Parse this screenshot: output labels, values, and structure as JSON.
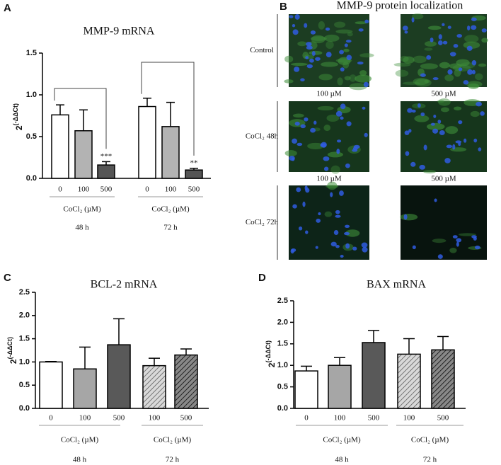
{
  "chart_data": [
    {
      "type": "bar",
      "panel_label": "A",
      "title": "MMP-9 mRNA",
      "ylabel": "2",
      "ylabel_exponent": "(-ΔΔCt)",
      "categories": [
        "0",
        "100",
        "500",
        "0",
        "100",
        "500"
      ],
      "values": [
        0.76,
        0.57,
        0.16,
        0.86,
        0.62,
        0.1
      ],
      "errors": [
        0.12,
        0.25,
        0.04,
        0.1,
        0.29,
        0.02
      ],
      "annotations": [
        null,
        null,
        "***",
        null,
        null,
        "**"
      ],
      "colors": [
        "#ffffff",
        "#b3b3b3",
        "#555555",
        "#ffffff",
        "#b3b3b3",
        "#555555"
      ],
      "hatched": [
        false,
        false,
        false,
        false,
        false,
        false
      ],
      "group_labels": [
        "CoCl₂ (µM)",
        "CoCl₂ (µM)"
      ],
      "group_times": [
        "48 h",
        "72 h"
      ],
      "ylim": [
        0,
        1.5
      ],
      "yticks": [
        {
          "value": 0,
          "label": "0.0"
        },
        0.5,
        {
          "value": 1,
          "label": "1.0"
        },
        1.5
      ]
    },
    {
      "type": "bar",
      "panel_label": "C",
      "title": "BCL-2 mRNA",
      "ylabel": "2",
      "ylabel_exponent": "(-ΔΔCt)",
      "categories": [
        "0",
        "100",
        "500",
        "100",
        "500"
      ],
      "values": [
        1.0,
        0.85,
        1.37,
        0.92,
        1.15
      ],
      "errors": [
        0.01,
        0.47,
        0.56,
        0.16,
        0.13
      ],
      "colors": [
        "#ffffff",
        "#a6a6a6",
        "#595959",
        "#bfbfbf",
        "#595959"
      ],
      "hatched": [
        false,
        false,
        false,
        true,
        true
      ],
      "group_labels": [
        "CoCl₂ (µM)",
        "CoCl₂ (µM)"
      ],
      "group_times": [
        "48 h",
        "72 h"
      ],
      "ylim": [
        0,
        2.5
      ],
      "yticks": [
        {
          "value": 0,
          "label": "0.0"
        },
        0.5,
        {
          "value": 1,
          "label": "1.0"
        },
        1.5,
        {
          "value": 2,
          "label": "2.0"
        },
        2.5
      ]
    },
    {
      "type": "bar",
      "panel_label": "D",
      "title": "BAX mRNA",
      "ylabel": "2",
      "ylabel_exponent": "(-ΔΔCt)",
      "categories": [
        "0",
        "100",
        "500",
        "100",
        "500"
      ],
      "values": [
        0.87,
        1.0,
        1.53,
        1.26,
        1.36
      ],
      "errors": [
        0.11,
        0.18,
        0.28,
        0.36,
        0.31
      ],
      "colors": [
        "#ffffff",
        "#a6a6a6",
        "#595959",
        "#bfbfbf",
        "#595959"
      ],
      "hatched": [
        false,
        false,
        false,
        true,
        true
      ],
      "group_labels": [
        "CoCl₂ (µM)",
        "CoCl₂ (µM)"
      ],
      "group_times": [
        "48 h",
        "72 h"
      ],
      "ylim": [
        0,
        2.5
      ],
      "yticks": [
        {
          "value": 0,
          "label": "0.0"
        },
        0.5,
        {
          "value": 1,
          "label": "1.0"
        },
        1.5,
        {
          "value": 2,
          "label": "2.0"
        },
        2.5
      ]
    }
  ],
  "image_panel": {
    "panel_label": "B",
    "title": "MMP-9 protein localization",
    "row_labels": [
      "Control",
      "CoCl₂ 48h",
      "CoCl₂ 72h"
    ],
    "column_label_rows": [
      [
        "100 µM",
        "500 µM"
      ],
      [
        "100 µM",
        "500 µM"
      ]
    ]
  }
}
